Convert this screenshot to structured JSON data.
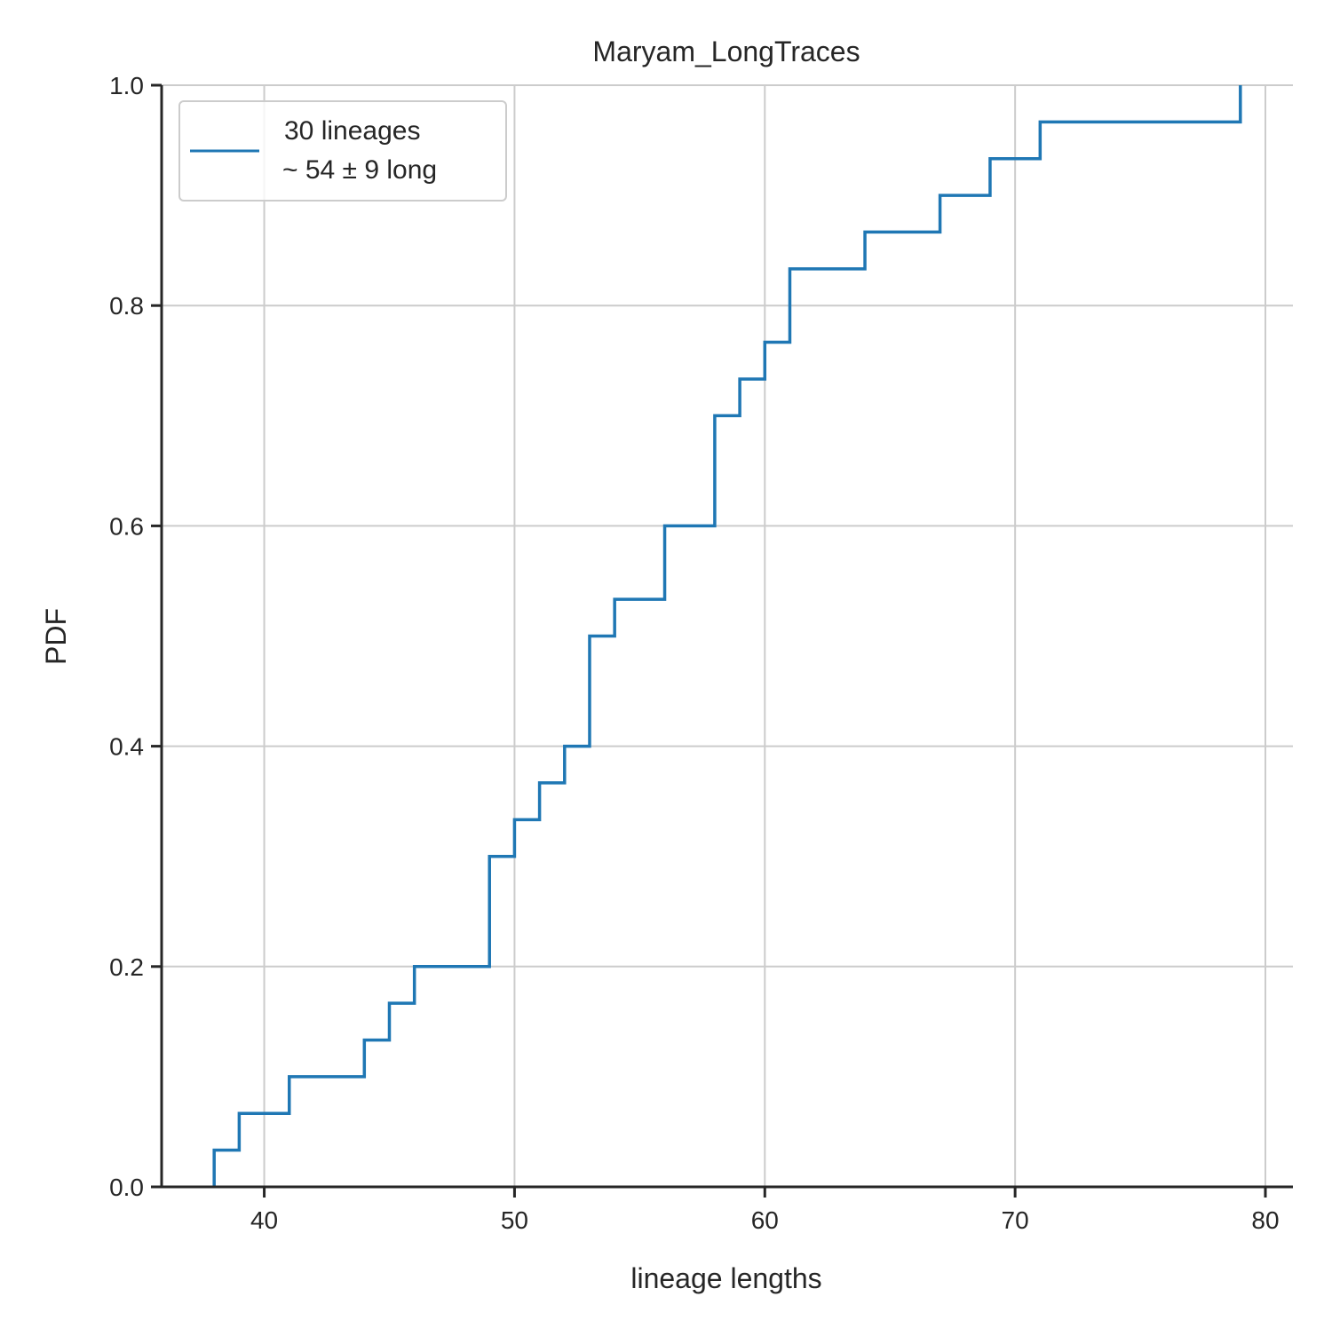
{
  "chart_data": {
    "type": "line",
    "subtype": "step-ecdf",
    "title": "Maryam_LongTraces",
    "xlabel": "lineage lengths",
    "ylabel": "PDF",
    "xlim": [
      35.9,
      81.1
    ],
    "ylim": [
      0,
      1.0
    ],
    "xticks": [
      40,
      50,
      60,
      70,
      80
    ],
    "yticks": [
      0.0,
      0.2,
      0.4,
      0.6,
      0.8,
      1.0
    ],
    "xtick_labels": [
      "40",
      "50",
      "60",
      "70",
      "80"
    ],
    "ytick_labels": [
      "0.0",
      "0.2",
      "0.4",
      "0.6",
      "0.8",
      "1.0"
    ],
    "grid": true,
    "legend_position": "top-left",
    "series": [
      {
        "name": "30 lineages\n ~ 54 ± 9 long",
        "legend_line1": "30 lineages",
        "legend_line2": "~ 54 ± 9 long",
        "color": "#1f77b4",
        "x": [
          38,
          39,
          41,
          44,
          45,
          46,
          49,
          50,
          51,
          52,
          53,
          54,
          56,
          58,
          59,
          60,
          61,
          64,
          67,
          69,
          71,
          79
        ],
        "y": [
          0.0333,
          0.0667,
          0.1,
          0.1333,
          0.1667,
          0.2,
          0.3,
          0.3333,
          0.3667,
          0.4,
          0.5,
          0.5333,
          0.6,
          0.7,
          0.7333,
          0.7667,
          0.8333,
          0.8667,
          0.9,
          0.9333,
          0.9667,
          1.0
        ]
      }
    ]
  }
}
